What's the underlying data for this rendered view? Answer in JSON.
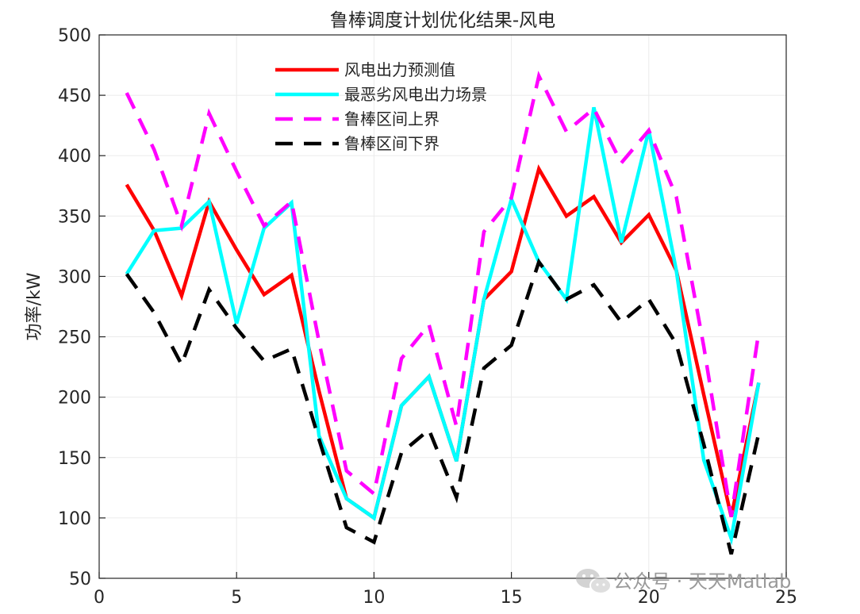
{
  "chart_data": {
    "type": "line",
    "title": "鲁棒调度计划优化结果-风电",
    "xlabel": "",
    "ylabel": "功率/kW",
    "xlim": [
      0,
      25
    ],
    "ylim": [
      50,
      500
    ],
    "xticks": [
      0,
      5,
      10,
      15,
      20,
      25
    ],
    "yticks": [
      50,
      100,
      150,
      200,
      250,
      300,
      350,
      400,
      450,
      500
    ],
    "grid": true,
    "legend_position": "top-center",
    "x": [
      1,
      2,
      3,
      4,
      5,
      6,
      7,
      8,
      9,
      10,
      11,
      12,
      13,
      14,
      15,
      16,
      17,
      18,
      19,
      20,
      21,
      22,
      23,
      24
    ],
    "series": [
      {
        "name": "风电出力预测值",
        "color": "#ff0000",
        "dash": "solid",
        "values": [
          376,
          338,
          284,
          362,
          322,
          285,
          301,
          205,
          116,
          100,
          193,
          217,
          147,
          281,
          304,
          389,
          350,
          366,
          328,
          351,
          305,
          202,
          101,
          212
        ]
      },
      {
        "name": "最恶劣风电出力场景",
        "color": "#00ffff",
        "dash": "solid",
        "values": [
          302,
          338,
          340,
          362,
          261,
          340,
          361,
          168,
          116,
          100,
          193,
          217,
          147,
          281,
          364,
          312,
          281,
          440,
          328,
          421,
          305,
          148,
          83,
          212
        ]
      },
      {
        "name": "鲁棒区间上界",
        "color": "#ff00ff",
        "dash": "dashed",
        "values": [
          452,
          405,
          342,
          435,
          387,
          342,
          362,
          246,
          139,
          120,
          232,
          260,
          176,
          337,
          365,
          466,
          420,
          439,
          394,
          421,
          366,
          242,
          101,
          254
        ]
      },
      {
        "name": "鲁棒区间下界",
        "color": "#000000",
        "dash": "dashed",
        "values": [
          302,
          270,
          227,
          289,
          257,
          230,
          240,
          165,
          92,
          80,
          154,
          173,
          117,
          224,
          243,
          312,
          281,
          293,
          262,
          281,
          244,
          161,
          70,
          170
        ]
      }
    ]
  },
  "watermark": {
    "text": "公众号 · 天天Matlab",
    "icon": "wechat-icon"
  }
}
